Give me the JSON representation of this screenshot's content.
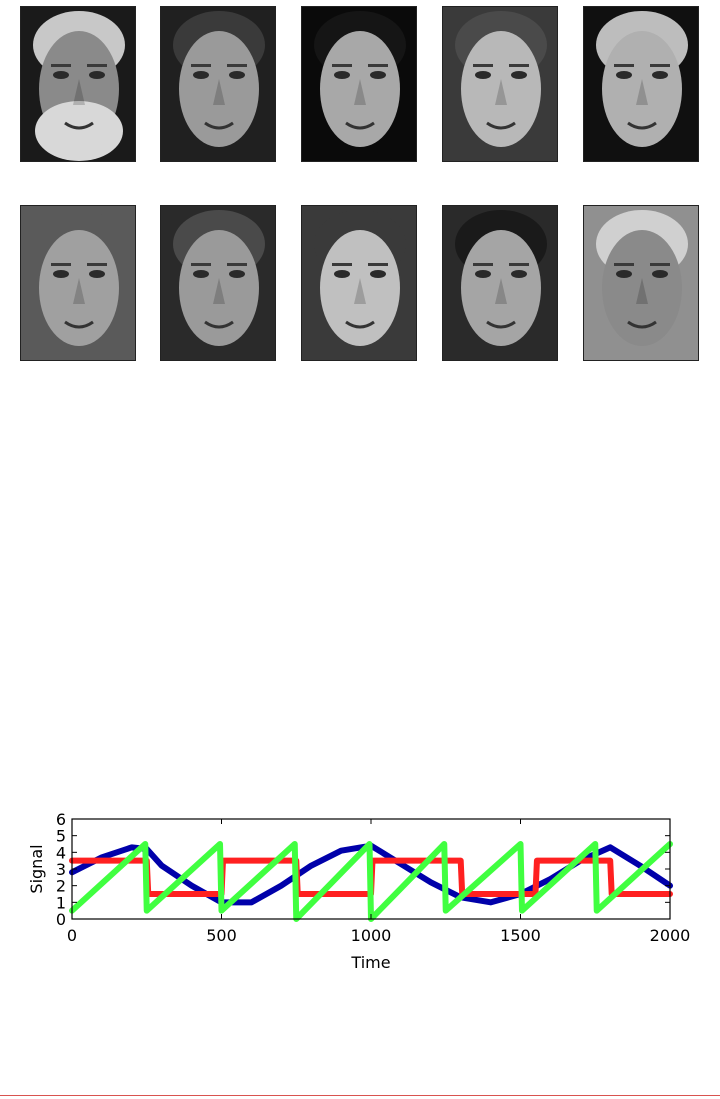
{
  "faces": {
    "rows": [
      [
        {
          "name": "face-bearded-man",
          "bg": "#1a1a1a",
          "skin": "#8a8a8a",
          "hair": "#c8c8c8",
          "beard": true
        },
        {
          "name": "face-smiling-young-man",
          "bg": "#202020",
          "skin": "#9a9a9a",
          "hair": "#3a3a3a",
          "beard": false
        },
        {
          "name": "face-laughing-woman",
          "bg": "#0a0a0a",
          "skin": "#a8a8a8",
          "hair": "#151515",
          "beard": false
        },
        {
          "name": "face-young-woman",
          "bg": "#3a3a3a",
          "skin": "#b8b8b8",
          "hair": "#4a4a4a",
          "beard": false
        },
        {
          "name": "face-older-man",
          "bg": "#101010",
          "skin": "#b0b0b0",
          "hair": "#bdbdbd",
          "beard": false
        }
      ],
      [
        {
          "name": "face-woman-glancing",
          "bg": "#5a5a5a",
          "skin": "#a0a0a0",
          "hair": "#5a5a5a",
          "beard": false
        },
        {
          "name": "face-smiling-woman",
          "bg": "#2a2a2a",
          "skin": "#9a9a9a",
          "hair": "#4a4a4a",
          "beard": false
        },
        {
          "name": "face-young-woman-2",
          "bg": "#3a3a3a",
          "skin": "#c0c0c0",
          "hair": "#3a3a3a",
          "beard": false
        },
        {
          "name": "face-grimacing-man",
          "bg": "#2a2a2a",
          "skin": "#a5a5a5",
          "hair": "#1a1a1a",
          "beard": false
        },
        {
          "name": "face-elderly-man",
          "bg": "#909090",
          "skin": "#8a8a8a",
          "hair": "#d0d0d0",
          "beard": false
        }
      ]
    ]
  },
  "chart_data": {
    "type": "line",
    "title": "",
    "xlabel": "Time",
    "ylabel": "Signal",
    "xlim": [
      0,
      2000
    ],
    "ylim": [
      0,
      6
    ],
    "xticks": [
      0,
      500,
      1000,
      1500,
      2000
    ],
    "yticks": [
      0,
      1,
      2,
      3,
      4,
      5,
      6
    ],
    "grid": false,
    "series": [
      {
        "color": "#0000aa",
        "x": [
          0,
          100,
          200,
          250,
          300,
          400,
          500,
          600,
          700,
          800,
          900,
          1000,
          1100,
          1200,
          1300,
          1400,
          1500,
          1600,
          1700,
          1800,
          1900,
          2000
        ],
        "y": [
          2.8,
          3.7,
          4.3,
          4.2,
          3.2,
          2.0,
          1.0,
          1.0,
          2.0,
          3.2,
          4.1,
          4.4,
          3.3,
          2.2,
          1.3,
          1.0,
          1.5,
          2.4,
          3.5,
          4.3,
          3.2,
          2.0
        ]
      },
      {
        "color": "#ff2020",
        "x": [
          0,
          250,
          255,
          500,
          505,
          750,
          755,
          1000,
          1005,
          1250,
          1255,
          1300,
          1305,
          1500,
          1550,
          1555,
          1750,
          1800,
          1805,
          2000
        ],
        "y": [
          3.5,
          3.5,
          1.5,
          1.5,
          3.5,
          3.5,
          1.5,
          1.5,
          3.5,
          3.5,
          3.5,
          3.5,
          1.5,
          1.5,
          1.5,
          3.5,
          3.5,
          3.5,
          1.5,
          1.5
        ]
      },
      {
        "color": "#40ff40",
        "x": [
          0,
          245,
          250,
          495,
          500,
          745,
          750,
          995,
          1000,
          1245,
          1250,
          1500,
          1505,
          1750,
          1755,
          2000
        ],
        "y": [
          0.5,
          4.5,
          0.5,
          4.5,
          0.5,
          4.5,
          0.0,
          4.5,
          0.0,
          4.5,
          0.5,
          4.5,
          0.5,
          4.5,
          0.5,
          4.5
        ]
      }
    ]
  }
}
